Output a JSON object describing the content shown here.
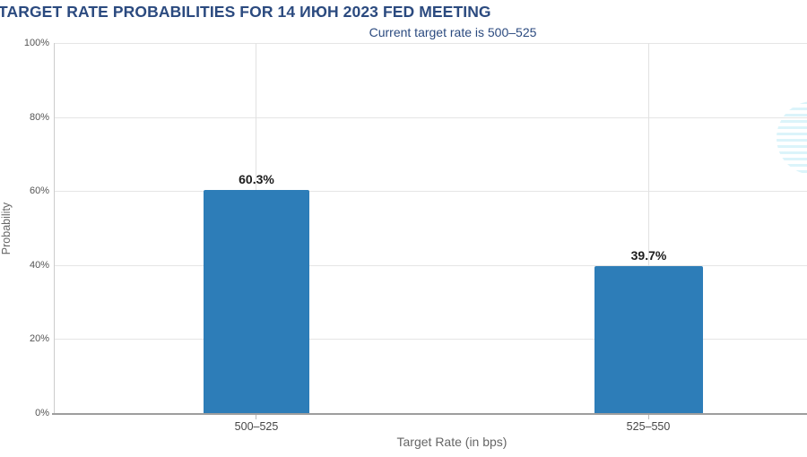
{
  "page": {
    "background": "#ffffff"
  },
  "chart_data": {
    "type": "bar",
    "title": "TARGET RATE PROBABILITIES FOR 14 ИЮН 2023 FED MEETING",
    "subtitle": "Current target rate is 500–525",
    "categories": [
      "500–525",
      "525–550"
    ],
    "values": [
      60.3,
      39.7
    ],
    "value_labels": [
      "60.3%",
      "39.7%"
    ],
    "xlabel": "Target Rate (in bps)",
    "ylabel": "Probability",
    "ylim": [
      0,
      100
    ],
    "ytick_labels": [
      "0%",
      "20%",
      "40%",
      "60%",
      "80%",
      "100%"
    ],
    "grid": true,
    "legend_position": "none",
    "bar_color": "#2d7db8",
    "title_color": "#2b4a7f",
    "watermark_icon": "striped-globe-logo-fragment"
  }
}
